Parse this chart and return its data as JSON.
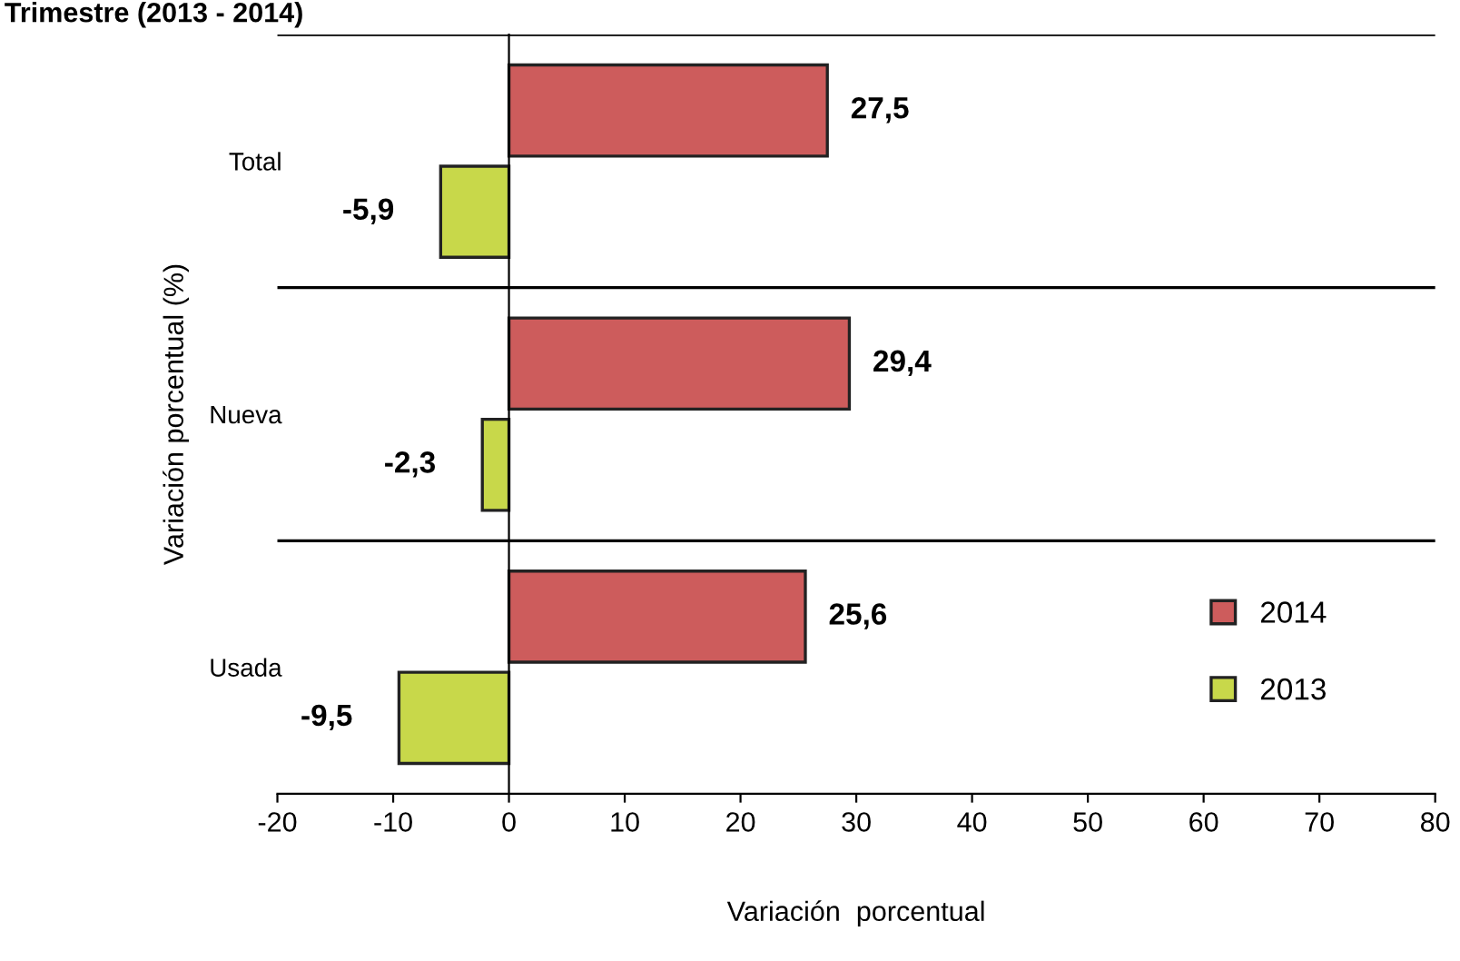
{
  "chart_data": {
    "type": "bar",
    "orientation": "horizontal",
    "title": "Trimestre (2013 - 2014)",
    "xlabel": "Variación  porcentual",
    "ylabel": "Variación porcentual (%)",
    "categories": [
      "Total",
      "Nueva",
      "Usada"
    ],
    "series": [
      {
        "name": "2014",
        "color": "#cd5c5c",
        "values": [
          27.5,
          29.4,
          25.6
        ]
      },
      {
        "name": "2013",
        "color": "#c8d84a",
        "values": [
          -5.9,
          -2.3,
          -9.5
        ]
      }
    ],
    "value_labels": [
      [
        "27,5",
        "29,4",
        "25,6"
      ],
      [
        "-5,9",
        "-2,3",
        "-9,5"
      ]
    ],
    "xlim": [
      -20,
      80
    ],
    "xticks": [
      -20,
      -10,
      0,
      10,
      20,
      30,
      40,
      50,
      60,
      70,
      80
    ],
    "grid": "y",
    "legend": "bottom right"
  }
}
